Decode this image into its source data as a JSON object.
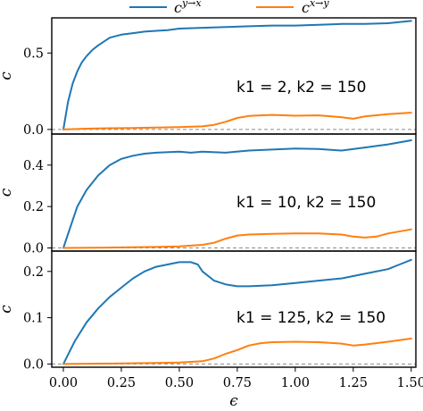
{
  "legend": {
    "entries": [
      {
        "base": "c",
        "sup": "y→x",
        "color": "#1f77b4"
      },
      {
        "base": "c",
        "sup": "x→y",
        "color": "#ff7f0e"
      }
    ],
    "placement": "top-center"
  },
  "xlabel": "ϵ",
  "chart_data": [
    {
      "type": "line",
      "annotation": "k1 = 2, k2 = 150",
      "ylabel": "c",
      "xlim": [
        -0.05,
        1.52
      ],
      "ylim": [
        -0.03,
        0.73
      ],
      "yticks": [
        {
          "value": 0.0,
          "label": "0.0"
        },
        {
          "value": 0.5,
          "label": "0.5"
        }
      ],
      "reference_line": 0.0,
      "series": [
        {
          "name": "c^{y→x}",
          "color": "#1f77b4",
          "x": [
            0,
            0.02,
            0.04,
            0.06,
            0.08,
            0.1,
            0.125,
            0.15,
            0.2,
            0.25,
            0.3,
            0.35,
            0.4,
            0.45,
            0.5,
            0.6,
            0.7,
            0.8,
            0.9,
            1.0,
            1.1,
            1.2,
            1.3,
            1.4,
            1.5
          ],
          "y": [
            0.0,
            0.18,
            0.3,
            0.38,
            0.44,
            0.48,
            0.52,
            0.55,
            0.6,
            0.62,
            0.63,
            0.64,
            0.645,
            0.65,
            0.66,
            0.665,
            0.67,
            0.675,
            0.68,
            0.68,
            0.685,
            0.69,
            0.69,
            0.695,
            0.71
          ]
        },
        {
          "name": "c^{x→y}",
          "color": "#ff7f0e",
          "x": [
            0,
            0.1,
            0.2,
            0.3,
            0.4,
            0.5,
            0.6,
            0.65,
            0.7,
            0.75,
            0.8,
            0.85,
            0.9,
            1.0,
            1.1,
            1.2,
            1.25,
            1.3,
            1.4,
            1.5
          ],
          "y": [
            0.0,
            0.005,
            0.008,
            0.01,
            0.012,
            0.015,
            0.02,
            0.03,
            0.05,
            0.075,
            0.088,
            0.092,
            0.095,
            0.09,
            0.092,
            0.08,
            0.07,
            0.085,
            0.1,
            0.11
          ]
        }
      ]
    },
    {
      "type": "line",
      "annotation": "k1 = 10, k2 = 150",
      "ylabel": "c",
      "xlim": [
        -0.05,
        1.52
      ],
      "ylim": [
        -0.015,
        0.55
      ],
      "yticks": [
        {
          "value": 0.0,
          "label": "0.0"
        },
        {
          "value": 0.2,
          "label": "0.2"
        },
        {
          "value": 0.4,
          "label": "0.4"
        }
      ],
      "reference_line": 0.0,
      "series": [
        {
          "name": "c^{y→x}",
          "color": "#1f77b4",
          "x": [
            0,
            0.03,
            0.06,
            0.1,
            0.15,
            0.2,
            0.25,
            0.3,
            0.35,
            0.4,
            0.5,
            0.55,
            0.6,
            0.7,
            0.8,
            0.9,
            1.0,
            1.1,
            1.2,
            1.3,
            1.4,
            1.5
          ],
          "y": [
            0.0,
            0.1,
            0.2,
            0.28,
            0.35,
            0.4,
            0.43,
            0.445,
            0.455,
            0.46,
            0.465,
            0.46,
            0.465,
            0.46,
            0.47,
            0.475,
            0.48,
            0.478,
            0.47,
            0.485,
            0.5,
            0.52
          ]
        },
        {
          "name": "c^{x→y}",
          "color": "#ff7f0e",
          "x": [
            0,
            0.2,
            0.4,
            0.5,
            0.6,
            0.65,
            0.7,
            0.75,
            0.8,
            0.9,
            1.0,
            1.1,
            1.2,
            1.25,
            1.3,
            1.35,
            1.4,
            1.5
          ],
          "y": [
            0.0,
            0.002,
            0.005,
            0.008,
            0.015,
            0.025,
            0.045,
            0.06,
            0.065,
            0.068,
            0.07,
            0.07,
            0.065,
            0.055,
            0.05,
            0.055,
            0.07,
            0.09
          ]
        }
      ]
    },
    {
      "type": "line",
      "annotation": "k1 = 125, k2 = 150",
      "ylabel": "c",
      "xlim": [
        -0.05,
        1.52
      ],
      "ylim": [
        -0.007,
        0.244
      ],
      "yticks": [
        {
          "value": 0.0,
          "label": "0.0"
        },
        {
          "value": 0.1,
          "label": "0.1"
        },
        {
          "value": 0.2,
          "label": "0.2"
        }
      ],
      "reference_line": 0.0,
      "series": [
        {
          "name": "c^{y→x}",
          "color": "#1f77b4",
          "x": [
            0,
            0.03,
            0.05,
            0.1,
            0.15,
            0.2,
            0.25,
            0.3,
            0.35,
            0.4,
            0.45,
            0.5,
            0.55,
            0.58,
            0.6,
            0.65,
            0.7,
            0.75,
            0.8,
            0.9,
            1.0,
            1.1,
            1.2,
            1.3,
            1.4,
            1.45,
            1.5
          ],
          "y": [
            0.0,
            0.03,
            0.05,
            0.09,
            0.12,
            0.145,
            0.165,
            0.185,
            0.2,
            0.21,
            0.215,
            0.22,
            0.22,
            0.215,
            0.2,
            0.18,
            0.172,
            0.168,
            0.168,
            0.17,
            0.175,
            0.18,
            0.185,
            0.195,
            0.205,
            0.215,
            0.225
          ]
        },
        {
          "name": "c^{x→y}",
          "color": "#ff7f0e",
          "x": [
            0,
            0.2,
            0.4,
            0.5,
            0.6,
            0.65,
            0.7,
            0.75,
            0.8,
            0.85,
            0.9,
            1.0,
            1.1,
            1.2,
            1.25,
            1.3,
            1.4,
            1.5
          ],
          "y": [
            0.0,
            0.001,
            0.002,
            0.003,
            0.006,
            0.012,
            0.022,
            0.03,
            0.04,
            0.045,
            0.047,
            0.048,
            0.047,
            0.044,
            0.04,
            0.042,
            0.048,
            0.055
          ]
        }
      ]
    }
  ],
  "xticks": [
    {
      "value": 0.0,
      "label": "0.00"
    },
    {
      "value": 0.25,
      "label": "0.25"
    },
    {
      "value": 0.5,
      "label": "0.50"
    },
    {
      "value": 0.75,
      "label": "0.75"
    },
    {
      "value": 1.0,
      "label": "1.00"
    },
    {
      "value": 1.25,
      "label": "1.25"
    },
    {
      "value": 1.5,
      "label": "1.50"
    }
  ]
}
